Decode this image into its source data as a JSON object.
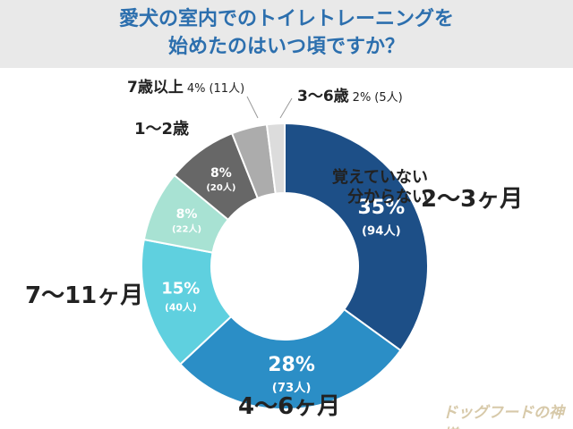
{
  "chart_data": {
    "type": "pie",
    "title": "愛犬の室内でのトイレトレーニングを\n始めたのはいつ頃ですか？",
    "categories": [
      "2〜3ヶ月",
      "4〜6ヶ月",
      "7〜11ヶ月",
      "覚えていない\n分からない",
      "1〜2歳",
      "7歳以上",
      "3〜6歳"
    ],
    "values": [
      35,
      28,
      15,
      8,
      8,
      4,
      2
    ],
    "value_labels": [
      "35%",
      "28%",
      "15%",
      "8%",
      "8%",
      "4%",
      "2%"
    ],
    "count_labels": [
      "(94人)",
      "(73人)",
      "(40人)",
      "(22人)",
      "(20人)",
      "(11人)",
      "(5人)"
    ],
    "colors": [
      "#1d4f87",
      "#2b8ec6",
      "#5fd0df",
      "#a8e2d3",
      "#676767",
      "#acacac",
      "#dcdcdc"
    ],
    "donut": true,
    "watermark": "ドッグフードの神様"
  }
}
